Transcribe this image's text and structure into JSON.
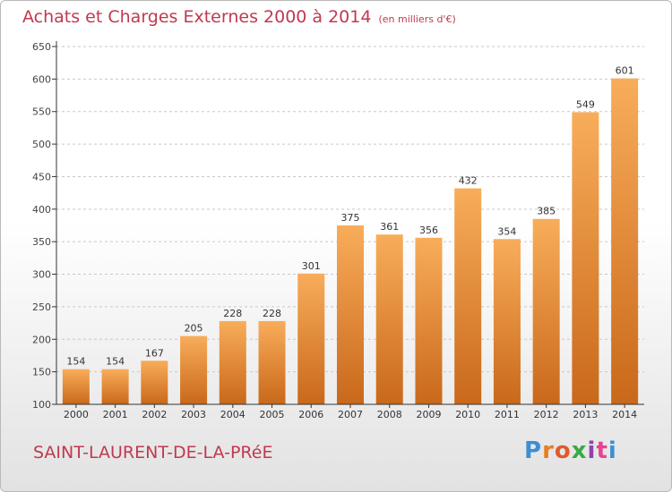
{
  "header": {
    "title": "Achats et Charges Externes 2000 à 2014",
    "unit": "(en milliers d'€)"
  },
  "footer": {
    "place": "SAINT-LAURENT-DE-LA-PRéE",
    "logo": {
      "letters": [
        "P",
        "r",
        "o",
        "x",
        "i",
        "t",
        "i"
      ],
      "colors": [
        "#3b8fd4",
        "#e67e22",
        "#e05a2b",
        "#3aa845",
        "#8e44ad",
        "#e84393",
        "#3b8fd4"
      ]
    }
  },
  "colors": {
    "bar": "#ee8a2c",
    "bar_light": "#f8ad5a",
    "bar_dark": "#c9681a",
    "grid": "#c8c8c8",
    "axis": "#333333"
  },
  "chart_data": {
    "type": "bar",
    "title": "Achats et Charges Externes 2000 à 2014",
    "categories": [
      "2000",
      "2001",
      "2002",
      "2003",
      "2004",
      "2005",
      "2006",
      "2007",
      "2008",
      "2009",
      "2010",
      "2011",
      "2012",
      "2013",
      "2014"
    ],
    "values": [
      154,
      154,
      167,
      205,
      228,
      228,
      301,
      375,
      361,
      356,
      432,
      354,
      385,
      549,
      601
    ],
    "ylim": [
      100,
      650
    ],
    "yticks": [
      100,
      150,
      200,
      250,
      300,
      350,
      400,
      450,
      500,
      550,
      600,
      650
    ],
    "grid": true
  }
}
